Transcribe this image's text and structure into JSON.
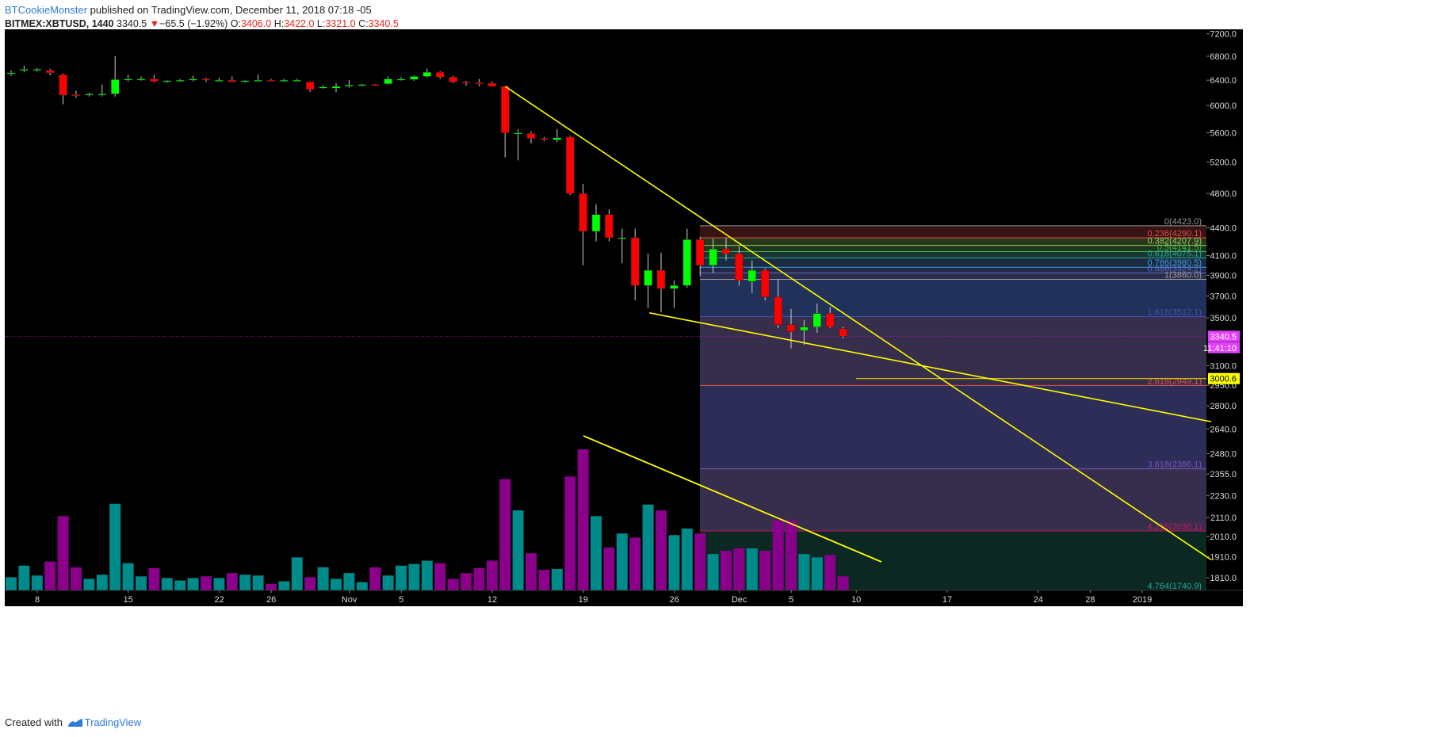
{
  "header": {
    "author": "BTCookieMonster",
    "published_text": " published on TradingView.com, December 11, 2018 07:18 -05"
  },
  "symbol_bar": {
    "symbol": "BITMEX:XBTUSD, 1440",
    "last": "3340.5",
    "change_arrow": "▼",
    "change": "−65.5 (−1.92%)",
    "open_label": "O:",
    "open": "3406.0",
    "high_label": "H:",
    "high": "3422.0",
    "low_label": "L:",
    "low": "3321.0",
    "close_label": "C:",
    "close": "3340.5"
  },
  "footer": {
    "created_with": "Created with",
    "brand": "TradingView"
  },
  "colors": {
    "background": "#000000",
    "up": "#00ff00",
    "down": "#ff0000",
    "volume_up": "#008b8b",
    "volume_down": "#8b008b",
    "trendline": "#ffff00",
    "price_line": "#c000c0"
  },
  "chart_data": {
    "type": "candlestick",
    "symbol": "BITMEX:XBTUSD",
    "interval": "1440",
    "y_axis": {
      "scale": "log",
      "ylim": [
        1700,
        7300
      ],
      "ticks": [
        "7200.0",
        "6800.0",
        "6400.0",
        "6000.0",
        "5600.0",
        "5200.0",
        "4800.0",
        "4400.0",
        "4100.0",
        "3900.0",
        "3700.0",
        "3500.0",
        "3100.0",
        "2950.0",
        "2800.0",
        "2640.0",
        "2480.0",
        "2355.0",
        "2230.0",
        "2110.0",
        "2010.0",
        "1910.0",
        "1810.0"
      ]
    },
    "x_axis": {
      "tick_labels": [
        "8",
        "15",
        "22",
        "26",
        "Nov",
        "5",
        "12",
        "19",
        "26",
        "Dec",
        "5",
        "10",
        "17",
        "24",
        "28",
        "2019"
      ],
      "tick_days": [
        0,
        7,
        14,
        18,
        24,
        28,
        35,
        42,
        49,
        54,
        58,
        63,
        70,
        77,
        81,
        85
      ]
    },
    "candles": [
      {
        "o": 6510,
        "h": 6560,
        "l": 6470,
        "c": 6520,
        "v": 16
      },
      {
        "o": 6570,
        "h": 6640,
        "l": 6530,
        "c": 6580,
        "v": 30
      },
      {
        "o": 6580,
        "h": 6600,
        "l": 6540,
        "c": 6580,
        "v": 18
      },
      {
        "o": 6560,
        "h": 6590,
        "l": 6480,
        "c": 6520,
        "v": 35
      },
      {
        "o": 6490,
        "h": 6510,
        "l": 6020,
        "c": 6160,
        "v": 90
      },
      {
        "o": 6170,
        "h": 6230,
        "l": 6120,
        "c": 6160,
        "v": 28
      },
      {
        "o": 6170,
        "h": 6200,
        "l": 6140,
        "c": 6180,
        "v": 14
      },
      {
        "o": 6180,
        "h": 6330,
        "l": 6140,
        "c": 6180,
        "v": 19
      },
      {
        "o": 6180,
        "h": 6800,
        "l": 6140,
        "c": 6410,
        "v": 105
      },
      {
        "o": 6410,
        "h": 6490,
        "l": 6380,
        "c": 6420,
        "v": 33
      },
      {
        "o": 6420,
        "h": 6460,
        "l": 6390,
        "c": 6420,
        "v": 17
      },
      {
        "o": 6420,
        "h": 6490,
        "l": 6360,
        "c": 6380,
        "v": 27
      },
      {
        "o": 6380,
        "h": 6400,
        "l": 6360,
        "c": 6390,
        "v": 15
      },
      {
        "o": 6390,
        "h": 6420,
        "l": 6370,
        "c": 6400,
        "v": 12
      },
      {
        "o": 6400,
        "h": 6470,
        "l": 6380,
        "c": 6420,
        "v": 15
      },
      {
        "o": 6420,
        "h": 6440,
        "l": 6370,
        "c": 6400,
        "v": 17
      },
      {
        "o": 6400,
        "h": 6440,
        "l": 6380,
        "c": 6400,
        "v": 15
      },
      {
        "o": 6400,
        "h": 6460,
        "l": 6380,
        "c": 6370,
        "v": 21
      },
      {
        "o": 6380,
        "h": 6400,
        "l": 6360,
        "c": 6390,
        "v": 19
      },
      {
        "o": 6390,
        "h": 6490,
        "l": 6370,
        "c": 6400,
        "v": 18
      },
      {
        "o": 6400,
        "h": 6420,
        "l": 6380,
        "c": 6390,
        "v": 8
      },
      {
        "o": 6390,
        "h": 6420,
        "l": 6370,
        "c": 6400,
        "v": 11
      },
      {
        "o": 6400,
        "h": 6420,
        "l": 6380,
        "c": 6400,
        "v": 40
      },
      {
        "o": 6370,
        "h": 6380,
        "l": 6210,
        "c": 6250,
        "v": 16
      },
      {
        "o": 6280,
        "h": 6320,
        "l": 6260,
        "c": 6290,
        "v": 28
      },
      {
        "o": 6270,
        "h": 6350,
        "l": 6210,
        "c": 6300,
        "v": 14
      },
      {
        "o": 6300,
        "h": 6400,
        "l": 6280,
        "c": 6320,
        "v": 21
      },
      {
        "o": 6320,
        "h": 6340,
        "l": 6300,
        "c": 6330,
        "v": 10
      },
      {
        "o": 6330,
        "h": 6340,
        "l": 6310,
        "c": 6320,
        "v": 28
      },
      {
        "o": 6340,
        "h": 6460,
        "l": 6330,
        "c": 6420,
        "v": 18
      },
      {
        "o": 6420,
        "h": 6450,
        "l": 6390,
        "c": 6420,
        "v": 30
      },
      {
        "o": 6410,
        "h": 6480,
        "l": 6390,
        "c": 6460,
        "v": 32
      },
      {
        "o": 6460,
        "h": 6590,
        "l": 6440,
        "c": 6530,
        "v": 36
      },
      {
        "o": 6530,
        "h": 6550,
        "l": 6420,
        "c": 6450,
        "v": 33
      },
      {
        "o": 6450,
        "h": 6470,
        "l": 6350,
        "c": 6370,
        "v": 14
      },
      {
        "o": 6370,
        "h": 6390,
        "l": 6310,
        "c": 6360,
        "v": 21
      },
      {
        "o": 6360,
        "h": 6420,
        "l": 6300,
        "c": 6350,
        "v": 27
      },
      {
        "o": 6350,
        "h": 6380,
        "l": 6300,
        "c": 6300,
        "v": 36
      },
      {
        "o": 6300,
        "h": 6300,
        "l": 5260,
        "c": 5600,
        "v": 135
      },
      {
        "o": 5600,
        "h": 5650,
        "l": 5220,
        "c": 5600,
        "v": 97
      },
      {
        "o": 5590,
        "h": 5620,
        "l": 5450,
        "c": 5520,
        "v": 45
      },
      {
        "o": 5520,
        "h": 5540,
        "l": 5480,
        "c": 5510,
        "v": 25
      },
      {
        "o": 5500,
        "h": 5650,
        "l": 5470,
        "c": 5530,
        "v": 26
      },
      {
        "o": 5540,
        "h": 5560,
        "l": 4780,
        "c": 4800,
        "v": 138
      },
      {
        "o": 4800,
        "h": 4920,
        "l": 4000,
        "c": 4360,
        "v": 171
      },
      {
        "o": 4360,
        "h": 4670,
        "l": 4250,
        "c": 4550,
        "v": 90
      },
      {
        "o": 4550,
        "h": 4610,
        "l": 4250,
        "c": 4290,
        "v": 52
      },
      {
        "o": 4290,
        "h": 4390,
        "l": 4020,
        "c": 4290,
        "v": 69
      },
      {
        "o": 4290,
        "h": 4390,
        "l": 3660,
        "c": 3800,
        "v": 64
      },
      {
        "o": 3800,
        "h": 4120,
        "l": 3590,
        "c": 3950,
        "v": 104
      },
      {
        "o": 3950,
        "h": 4130,
        "l": 3550,
        "c": 3770,
        "v": 97
      },
      {
        "o": 3770,
        "h": 3850,
        "l": 3590,
        "c": 3800,
        "v": 67
      },
      {
        "o": 3800,
        "h": 4390,
        "l": 3780,
        "c": 4270,
        "v": 75
      },
      {
        "o": 4270,
        "h": 4300,
        "l": 3890,
        "c": 4000,
        "v": 69
      },
      {
        "o": 4000,
        "h": 4280,
        "l": 3920,
        "c": 4170,
        "v": 44
      },
      {
        "o": 4170,
        "h": 4290,
        "l": 4050,
        "c": 4120,
        "v": 48
      },
      {
        "o": 4120,
        "h": 4200,
        "l": 3800,
        "c": 3850,
        "v": 51
      },
      {
        "o": 3840,
        "h": 4050,
        "l": 3730,
        "c": 3950,
        "v": 51
      },
      {
        "o": 3950,
        "h": 3970,
        "l": 3660,
        "c": 3690,
        "v": 48
      },
      {
        "o": 3690,
        "h": 3860,
        "l": 3410,
        "c": 3440,
        "v": 85
      },
      {
        "o": 3440,
        "h": 3580,
        "l": 3240,
        "c": 3380,
        "v": 85
      },
      {
        "o": 3390,
        "h": 3480,
        "l": 3270,
        "c": 3420,
        "v": 44
      },
      {
        "o": 3420,
        "h": 3630,
        "l": 3370,
        "c": 3540,
        "v": 40
      },
      {
        "o": 3540,
        "h": 3600,
        "l": 3410,
        "c": 3420,
        "v": 43
      },
      {
        "o": 3406,
        "h": 3422,
        "l": 3321,
        "c": 3340.5,
        "v": 17
      }
    ],
    "fibonacci": {
      "levels": [
        {
          "label": "0(4423.0)",
          "price": 4423.0,
          "color": "#9a9a9a"
        },
        {
          "label": "0.236(4290.1)",
          "price": 4290.1,
          "color": "#e0514a"
        },
        {
          "label": "0.382(4207.9)",
          "price": 4207.9,
          "color": "#9ccc65"
        },
        {
          "label": "0.5(4141.5)",
          "price": 4141.5,
          "color": "#4caf50"
        },
        {
          "label": "0.618(4075.1)",
          "price": 4075.1,
          "color": "#26a69a"
        },
        {
          "label": "0.786(3980.5)",
          "price": 3980.5,
          "color": "#3f9be0"
        },
        {
          "label": "0.886(3924.2)",
          "price": 3924.2,
          "color": "#5c6bc0"
        },
        {
          "label": "1(3860.0)",
          "price": 3860.0,
          "color": "#9a9a9a"
        },
        {
          "label": "1.618(3512.1)",
          "price": 3512.1,
          "color": "#3f51b5"
        },
        {
          "label": "2.618(2949.1)",
          "price": 2949.1,
          "color": "#e0514a"
        },
        {
          "label": "3.618(2386.1)",
          "price": 2386.1,
          "color": "#7e57c2"
        },
        {
          "label": "4.236(2038.1)",
          "price": 2038.1,
          "color": "#c2185b"
        },
        {
          "label": "4.764(1740.9)",
          "price": 1740.9,
          "color": "#26a69a"
        }
      ]
    },
    "price_tags": [
      {
        "label": "3340.5",
        "price": 3340.5,
        "color": "#e040fb"
      },
      {
        "label": "11:41:10",
        "price": 3245,
        "color": "#e040fb"
      },
      {
        "label": "3000.6",
        "price": 3000.6,
        "color": "#ffff00"
      }
    ],
    "annotations": [
      "descending resistance trendline",
      "support trendline",
      "volume trendline",
      "horizontal level 3000.6"
    ]
  }
}
